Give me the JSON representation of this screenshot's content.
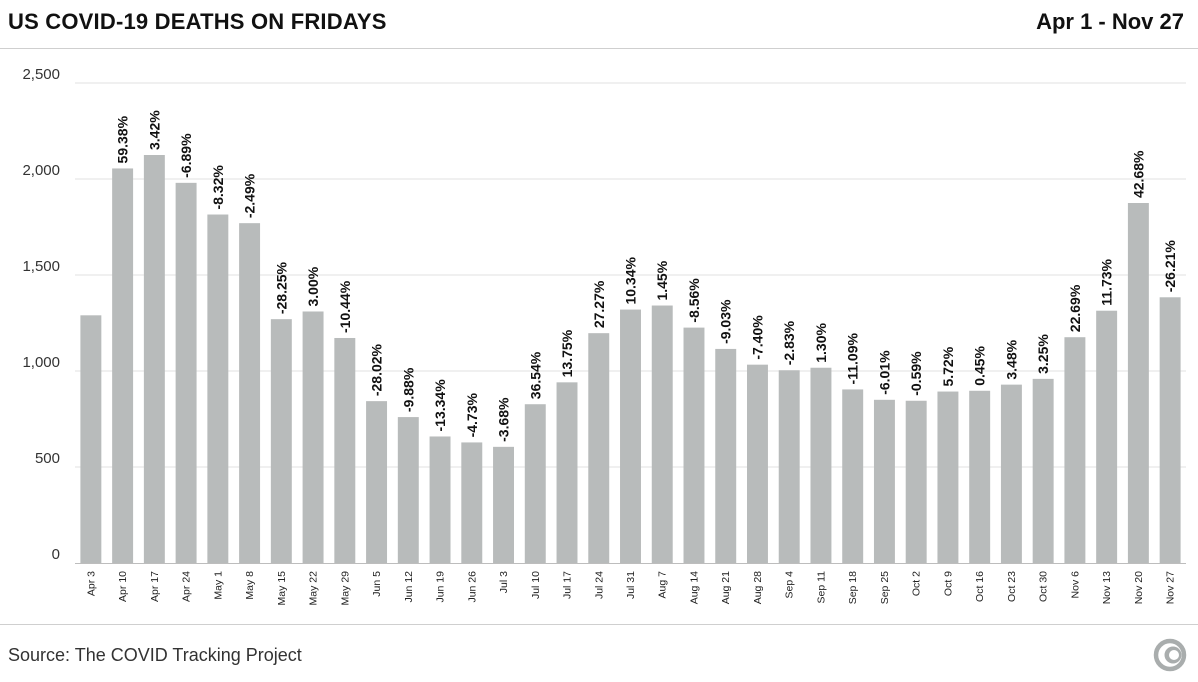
{
  "header": {
    "title": "US COVID-19 DEATHS ON FRIDAYS",
    "date_range": "Apr 1 - Nov 27"
  },
  "footer": {
    "source": "Source: The COVID Tracking Project",
    "logo_icon": "covid-tracking-logo-icon"
  },
  "colors": {
    "bar": "#b8bbbb",
    "grid": "#e2e2e2",
    "text": "#111111"
  },
  "chart_data": {
    "type": "bar",
    "title": "US COVID-19 DEATHS ON FRIDAYS",
    "subtitle": "Apr 1 - Nov 27",
    "xlabel": "",
    "ylabel": "",
    "ylim": [
      0,
      2500
    ],
    "yticks": [
      0,
      500,
      1000,
      1500,
      2000,
      2500
    ],
    "ytick_labels": [
      "0",
      "500",
      "1,000",
      "1,500",
      "2,000",
      "2,500"
    ],
    "grid": true,
    "legend": "none",
    "categories": [
      "Apr 3",
      "Apr 10",
      "Apr 17",
      "Apr 24",
      "May 1",
      "May 8",
      "May 15",
      "May 22",
      "May 29",
      "Jun 5",
      "Jun 12",
      "Jun 19",
      "Jun 26",
      "Jul 3",
      "Jul 10",
      "Jul 17",
      "Jul 24",
      "Jul 31",
      "Aug 7",
      "Aug 14",
      "Aug 21",
      "Aug 28",
      "Sep 4",
      "Sep 11",
      "Sep 18",
      "Sep 25",
      "Oct 2",
      "Oct 9",
      "Oct 16",
      "Oct 23",
      "Oct 30",
      "Nov 6",
      "Nov 13",
      "Nov 20",
      "Nov 27"
    ],
    "values": [
      1290,
      2055,
      2125,
      1980,
      1815,
      1770,
      1270,
      1310,
      1172,
      843,
      760,
      659,
      628,
      605,
      827,
      941,
      1197,
      1320,
      1341,
      1226,
      1115,
      1033,
      1004,
      1017,
      904,
      850,
      845,
      893,
      897,
      929,
      959,
      1176,
      1314,
      1875,
      1384
    ],
    "data_labels": [
      "",
      "59.38%",
      "3.42%",
      "-6.89%",
      "-8.32%",
      "-2.49%",
      "-28.25%",
      "3.00%",
      "-10.44%",
      "-28.02%",
      "-9.88%",
      "-13.34%",
      "-4.73%",
      "-3.68%",
      "36.54%",
      "13.75%",
      "27.27%",
      "10.34%",
      "1.45%",
      "-8.56%",
      "-9.03%",
      "-7.40%",
      "-2.83%",
      "1.30%",
      "-11.09%",
      "-6.01%",
      "-0.59%",
      "5.72%",
      "0.45%",
      "3.48%",
      "3.25%",
      "22.69%",
      "11.73%",
      "42.68%",
      "-26.21%"
    ]
  }
}
